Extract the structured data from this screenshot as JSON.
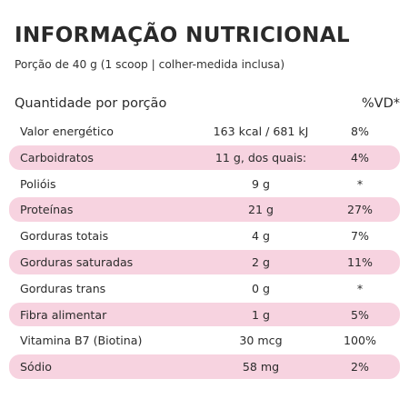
{
  "title": "INFORMAÇÃO NUTRICIONAL",
  "serving": "Porção de 40 g (1 scoop | colher-medida inclusa)",
  "header": {
    "quantity": "Quantidade por porção",
    "dv": "%VD*"
  },
  "rows": [
    {
      "name": "Valor energético",
      "amount": "163 kcal / 681 kJ",
      "dv": "8%"
    },
    {
      "name": "Carboidratos",
      "amount": "11 g, dos quais:",
      "dv": "4%"
    },
    {
      "name": "Polióis",
      "amount": "9 g",
      "dv": "*"
    },
    {
      "name": "Proteínas",
      "amount": "21 g",
      "dv": "27%"
    },
    {
      "name": "Gorduras totais",
      "amount": "4 g",
      "dv": "7%"
    },
    {
      "name": "Gorduras saturadas",
      "amount": "2 g",
      "dv": "11%"
    },
    {
      "name": "Gorduras trans",
      "amount": "0 g",
      "dv": "*"
    },
    {
      "name": "Fibra alimentar",
      "amount": "1 g",
      "dv": "5%"
    },
    {
      "name": "Vitamina B7 (Biotina)",
      "amount": "30 mcg",
      "dv": "100%"
    },
    {
      "name": "Sódio",
      "amount": "58 mg",
      "dv": "2%"
    }
  ],
  "colors": {
    "stripe": "#f7d3e0",
    "text": "#2b2b2b"
  }
}
